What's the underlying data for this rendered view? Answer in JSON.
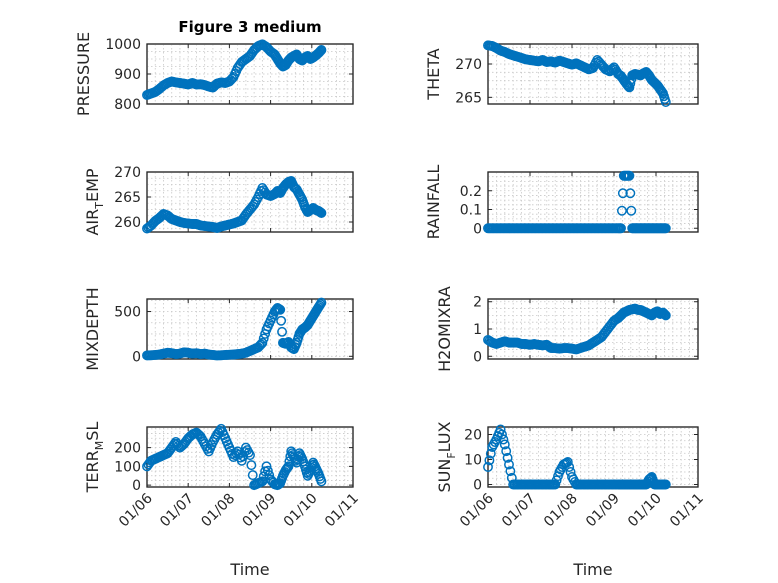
{
  "chart_data": [
    {
      "type": "scatter",
      "title": "Figure 3 medium",
      "ylabel": "PRESSURE",
      "ylabel_main": "PRESSURE",
      "ylabel_sub": "",
      "ylabel_tail": "",
      "ylim": [
        800,
        1000
      ],
      "yticks": [
        800,
        900,
        1000
      ],
      "yticklabels": [
        "800",
        "900",
        "1000"
      ],
      "xlim": [
        0,
        150
      ],
      "xlabel": "",
      "x": [
        0,
        3,
        6,
        9,
        12,
        15,
        18,
        21,
        24,
        27,
        30,
        33,
        36,
        39,
        42,
        45,
        48,
        51,
        54,
        57,
        60,
        63,
        66,
        69,
        72,
        75,
        78,
        81,
        84,
        87,
        90,
        93,
        95,
        97,
        99,
        101,
        103,
        105,
        107,
        109,
        111,
        113,
        115,
        117,
        119,
        121,
        123,
        125,
        127
      ],
      "y": [
        830,
        835,
        840,
        850,
        862,
        870,
        875,
        872,
        870,
        868,
        865,
        870,
        865,
        866,
        863,
        858,
        855,
        868,
        872,
        870,
        875,
        890,
        920,
        940,
        950,
        960,
        980,
        993,
        999,
        990,
        975,
        965,
        950,
        935,
        925,
        930,
        945,
        955,
        960,
        965,
        950,
        945,
        955,
        960,
        950,
        955,
        962,
        970,
        980
      ]
    },
    {
      "type": "scatter",
      "title": "",
      "ylabel": "THETA",
      "ylabel_main": "THETA",
      "ylabel_sub": "",
      "ylabel_tail": "",
      "ylim": [
        264,
        273
      ],
      "yticks": [
        265,
        270
      ],
      "yticklabels": [
        "265",
        "270"
      ],
      "xlim": [
        0,
        150
      ],
      "xlabel": "",
      "x": [
        0,
        3,
        6,
        9,
        12,
        15,
        18,
        21,
        24,
        27,
        30,
        33,
        36,
        39,
        42,
        45,
        48,
        51,
        54,
        57,
        60,
        63,
        66,
        69,
        72,
        75,
        78,
        81,
        84,
        87,
        90,
        93,
        95,
        97,
        99,
        101,
        103,
        105,
        107,
        109,
        111,
        113,
        115,
        117,
        119,
        121,
        123,
        125,
        127
      ],
      "y": [
        272.8,
        272.7,
        272.4,
        272,
        271.8,
        271.5,
        271.3,
        271.1,
        270.9,
        270.7,
        270.6,
        270.5,
        270.4,
        270.6,
        270.3,
        270.4,
        270.2,
        270.5,
        270.3,
        270.1,
        269.9,
        270.1,
        269.8,
        269.5,
        269.2,
        269.4,
        270.6,
        269.9,
        269.2,
        268.9,
        269.5,
        268.5,
        268.2,
        267.6,
        267.0,
        266.5,
        268.3,
        268.5,
        268.4,
        268.3,
        268.6,
        268.8,
        268.3,
        267.6,
        267.2,
        266.8,
        266.2,
        265.6,
        264.3
      ]
    },
    {
      "type": "scatter",
      "title": "",
      "ylabel": "AIR_TEMP",
      "ylabel_main": "AIR",
      "ylabel_sub": "T",
      "ylabel_tail": "EMP",
      "ylim": [
        258,
        270
      ],
      "yticks": [
        260,
        265,
        270
      ],
      "yticklabels": [
        "260",
        "265",
        "270"
      ],
      "xlim": [
        0,
        150
      ],
      "xlabel": "",
      "x": [
        0,
        3,
        6,
        9,
        12,
        15,
        18,
        21,
        24,
        27,
        30,
        33,
        36,
        39,
        42,
        45,
        48,
        51,
        54,
        57,
        60,
        63,
        66,
        69,
        72,
        75,
        78,
        81,
        84,
        87,
        90,
        93,
        95,
        97,
        99,
        101,
        103,
        105,
        107,
        109,
        111,
        113,
        115,
        117,
        119,
        121,
        123,
        125,
        127
      ],
      "y": [
        258.7,
        259.3,
        260.2,
        260.8,
        261.6,
        261.3,
        260.6,
        260.3,
        260.0,
        259.8,
        259.7,
        259.6,
        259.6,
        259.3,
        259.2,
        259.1,
        259.0,
        258.8,
        259.1,
        259.3,
        259.5,
        259.7,
        260,
        260.3,
        261.5,
        262.5,
        263.5,
        265,
        266.8,
        265.5,
        265.2,
        265.6,
        266.2,
        265.8,
        266.8,
        267.5,
        268.0,
        268.2,
        267.0,
        266.5,
        265.5,
        264.5,
        263.0,
        262.0,
        262.4,
        262.8,
        262.4,
        262.2,
        261.8
      ]
    },
    {
      "type": "scatter",
      "title": "",
      "ylabel": "RAINFALL",
      "ylabel_main": "RAINFALL",
      "ylabel_sub": "",
      "ylabel_tail": "",
      "ylim": [
        -0.02,
        0.3
      ],
      "yticks": [
        0,
        0.1,
        0.2
      ],
      "yticklabels": [
        "0",
        "0.1",
        "0.2"
      ],
      "xlim": [
        0,
        150
      ],
      "xlabel": "",
      "x": [
        0,
        3,
        6,
        9,
        12,
        15,
        18,
        21,
        24,
        27,
        30,
        33,
        36,
        39,
        42,
        45,
        48,
        51,
        54,
        57,
        60,
        63,
        66,
        69,
        72,
        75,
        78,
        81,
        84,
        87,
        90,
        93,
        95,
        97,
        99,
        101,
        103,
        105,
        107,
        109,
        111,
        113,
        115,
        117,
        119,
        121,
        123,
        125,
        127
      ],
      "y": [
        0,
        0,
        0,
        0,
        0,
        0,
        0,
        0,
        0,
        0,
        0,
        0,
        0,
        0,
        0,
        0,
        0,
        0,
        0,
        0,
        0,
        0,
        0,
        0,
        0,
        0,
        0,
        0,
        0,
        0,
        0,
        0,
        0,
        0.28,
        0.28,
        0.28,
        0,
        0,
        0,
        0,
        0,
        0,
        0,
        0,
        0,
        0,
        0,
        0,
        0
      ]
    },
    {
      "type": "scatter",
      "title": "",
      "ylabel": "MIXDEPTH",
      "ylabel_main": "MIXDEPTH",
      "ylabel_sub": "",
      "ylabel_tail": "",
      "ylim": [
        -30,
        640
      ],
      "yticks": [
        0,
        500
      ],
      "yticklabels": [
        "0",
        "500"
      ],
      "xlim": [
        0,
        150
      ],
      "xlabel": "",
      "x": [
        0,
        3,
        6,
        9,
        12,
        15,
        18,
        21,
        24,
        27,
        30,
        33,
        36,
        39,
        42,
        45,
        48,
        51,
        54,
        57,
        60,
        63,
        66,
        69,
        72,
        75,
        78,
        81,
        84,
        87,
        90,
        93,
        95,
        97,
        99,
        101,
        103,
        105,
        107,
        109,
        111,
        113,
        115,
        117,
        119,
        121,
        123,
        125,
        127
      ],
      "y": [
        10,
        12,
        15,
        20,
        30,
        40,
        35,
        25,
        30,
        45,
        40,
        30,
        35,
        25,
        30,
        20,
        15,
        10,
        12,
        15,
        18,
        20,
        25,
        30,
        40,
        60,
        80,
        100,
        150,
        300,
        400,
        500,
        540,
        520,
        150,
        140,
        160,
        100,
        80,
        150,
        250,
        300,
        320,
        350,
        400,
        450,
        500,
        550,
        600
      ]
    },
    {
      "type": "scatter",
      "title": "",
      "ylabel": "H2OMIXRA",
      "ylabel_main": "H2OMIXRA",
      "ylabel_sub": "",
      "ylabel_tail": "",
      "ylim": [
        -0.1,
        2.1
      ],
      "yticks": [
        0,
        1,
        2
      ],
      "yticklabels": [
        "0",
        "1",
        "2"
      ],
      "xlim": [
        0,
        150
      ],
      "xlabel": "",
      "x": [
        0,
        3,
        6,
        9,
        12,
        15,
        18,
        21,
        24,
        27,
        30,
        33,
        36,
        39,
        42,
        45,
        48,
        51,
        54,
        57,
        60,
        63,
        66,
        69,
        72,
        75,
        78,
        81,
        84,
        87,
        90,
        93,
        95,
        97,
        99,
        101,
        103,
        105,
        107,
        109,
        111,
        113,
        115,
        117,
        119,
        121,
        123,
        125,
        127
      ],
      "y": [
        0.6,
        0.5,
        0.45,
        0.5,
        0.55,
        0.5,
        0.5,
        0.5,
        0.45,
        0.45,
        0.42,
        0.45,
        0.42,
        0.4,
        0.42,
        0.3,
        0.3,
        0.28,
        0.3,
        0.3,
        0.28,
        0.25,
        0.3,
        0.35,
        0.4,
        0.5,
        0.6,
        0.7,
        0.9,
        1.1,
        1.3,
        1.4,
        1.5,
        1.6,
        1.65,
        1.7,
        1.72,
        1.75,
        1.7,
        1.7,
        1.65,
        1.6,
        1.55,
        1.5,
        1.6,
        1.65,
        1.55,
        1.6,
        1.5
      ]
    },
    {
      "type": "scatter",
      "title": "",
      "ylabel": "TERR_MSL",
      "ylabel_main": "TERR",
      "ylabel_sub": "M",
      "ylabel_tail": "SL",
      "ylim": [
        -10,
        310
      ],
      "yticks": [
        0,
        100,
        200
      ],
      "yticklabels": [
        "0",
        "100",
        "200"
      ],
      "xlim": [
        0,
        150
      ],
      "xlabel": "Time",
      "xticks": [
        0,
        30,
        60,
        90,
        120,
        150
      ],
      "xticklabels": [
        "01/06",
        "01/07",
        "01/08",
        "01/09",
        "01/10",
        "01/11"
      ],
      "x": [
        0,
        3,
        6,
        9,
        12,
        15,
        18,
        21,
        24,
        27,
        30,
        33,
        36,
        39,
        42,
        45,
        48,
        51,
        54,
        57,
        60,
        63,
        66,
        69,
        72,
        75,
        78,
        81,
        84,
        87,
        90,
        93,
        95,
        97,
        99,
        101,
        103,
        105,
        107,
        109,
        111,
        113,
        115,
        117,
        119,
        121,
        123,
        125,
        127
      ],
      "y": [
        100,
        130,
        140,
        150,
        160,
        170,
        200,
        230,
        200,
        220,
        250,
        270,
        280,
        260,
        220,
        180,
        230,
        270,
        300,
        250,
        200,
        150,
        180,
        130,
        200,
        160,
        0,
        10,
        20,
        100,
        30,
        5,
        0,
        10,
        50,
        80,
        100,
        180,
        150,
        120,
        170,
        140,
        100,
        50,
        80,
        120,
        90,
        60,
        20
      ]
    },
    {
      "type": "scatter",
      "title": "",
      "ylabel": "SUN_FLUX",
      "ylabel_main": "SUN",
      "ylabel_sub": "F",
      "ylabel_tail": "LUX",
      "ylim": [
        -1,
        23
      ],
      "yticks": [
        0,
        10,
        20
      ],
      "yticklabels": [
        "0",
        "10",
        "20"
      ],
      "xlim": [
        0,
        150
      ],
      "xlabel": "Time",
      "xticks": [
        0,
        30,
        60,
        90,
        120,
        150
      ],
      "xticklabels": [
        "01/06",
        "01/07",
        "01/08",
        "01/09",
        "01/10",
        "01/11"
      ],
      "x": [
        0,
        3,
        6,
        9,
        12,
        15,
        18,
        21,
        24,
        27,
        30,
        33,
        36,
        39,
        42,
        45,
        48,
        51,
        54,
        57,
        60,
        63,
        66,
        69,
        72,
        75,
        78,
        81,
        84,
        87,
        90,
        93,
        95,
        97,
        99,
        101,
        103,
        105,
        107,
        109,
        111,
        113,
        115,
        117,
        119,
        121,
        123,
        125,
        127
      ],
      "y": [
        7,
        15,
        18,
        22,
        16,
        8,
        0,
        0,
        0,
        0,
        0,
        0,
        0,
        0,
        0,
        0,
        0,
        5,
        8,
        9,
        3,
        0,
        0,
        0,
        0,
        0,
        0,
        0,
        0,
        0,
        0,
        0,
        0,
        0,
        0,
        0,
        0,
        0,
        0,
        0,
        0,
        0,
        2,
        3,
        0,
        0,
        0,
        0,
        0
      ]
    }
  ]
}
